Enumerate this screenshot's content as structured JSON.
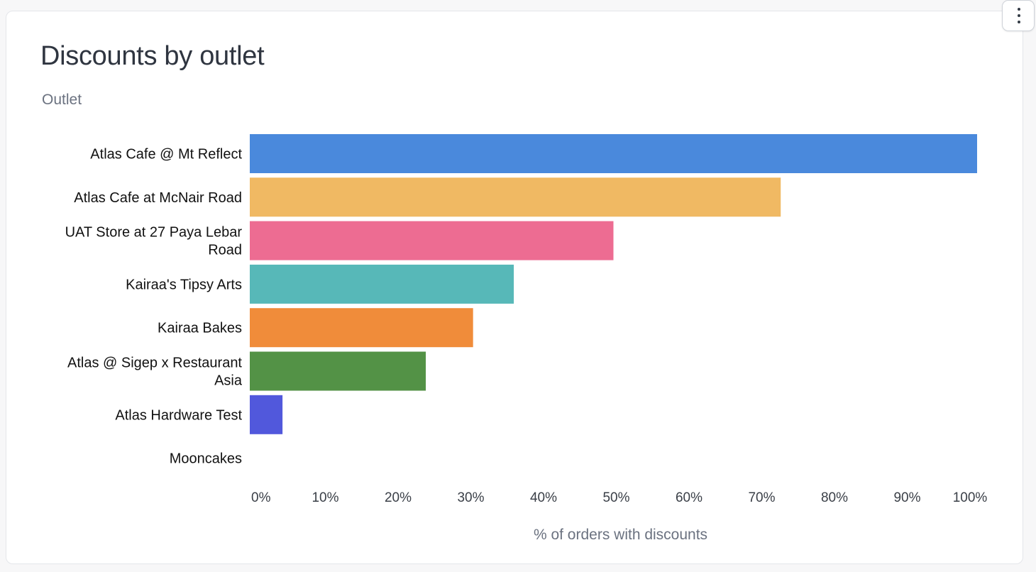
{
  "card": {
    "title": "Discounts by outlet",
    "menu_icon": "more-vertical-icon"
  },
  "chart_data": {
    "type": "bar",
    "orientation": "horizontal",
    "ylabel": "Outlet",
    "xlabel": "% of orders with discounts",
    "categories": [
      [
        "Atlas Cafe @ Mt Reflect"
      ],
      [
        "Atlas Cafe at McNair Road"
      ],
      [
        "UAT Store at 27 Paya Lebar",
        "Road"
      ],
      [
        "Kairaa's Tipsy Arts"
      ],
      [
        "Kairaa Bakes"
      ],
      [
        "Atlas @ Sigep x Restaurant",
        "Asia"
      ],
      [
        "Atlas Hardware Test"
      ],
      [
        "Mooncakes"
      ]
    ],
    "values": [
      100,
      73,
      50,
      36.3,
      30.7,
      24.2,
      4.5,
      0
    ],
    "colors": [
      "#4a89dc",
      "#f0b963",
      "#ed6c92",
      "#57b8b8",
      "#f08c3a",
      "#539246",
      "#5158dc",
      "#999999"
    ],
    "xlim": [
      0,
      100
    ],
    "xticks": [
      "0%",
      "10%",
      "20%",
      "30%",
      "40%",
      "50%",
      "60%",
      "70%",
      "80%",
      "90%",
      "100%"
    ],
    "grid": false,
    "legend": "none"
  }
}
